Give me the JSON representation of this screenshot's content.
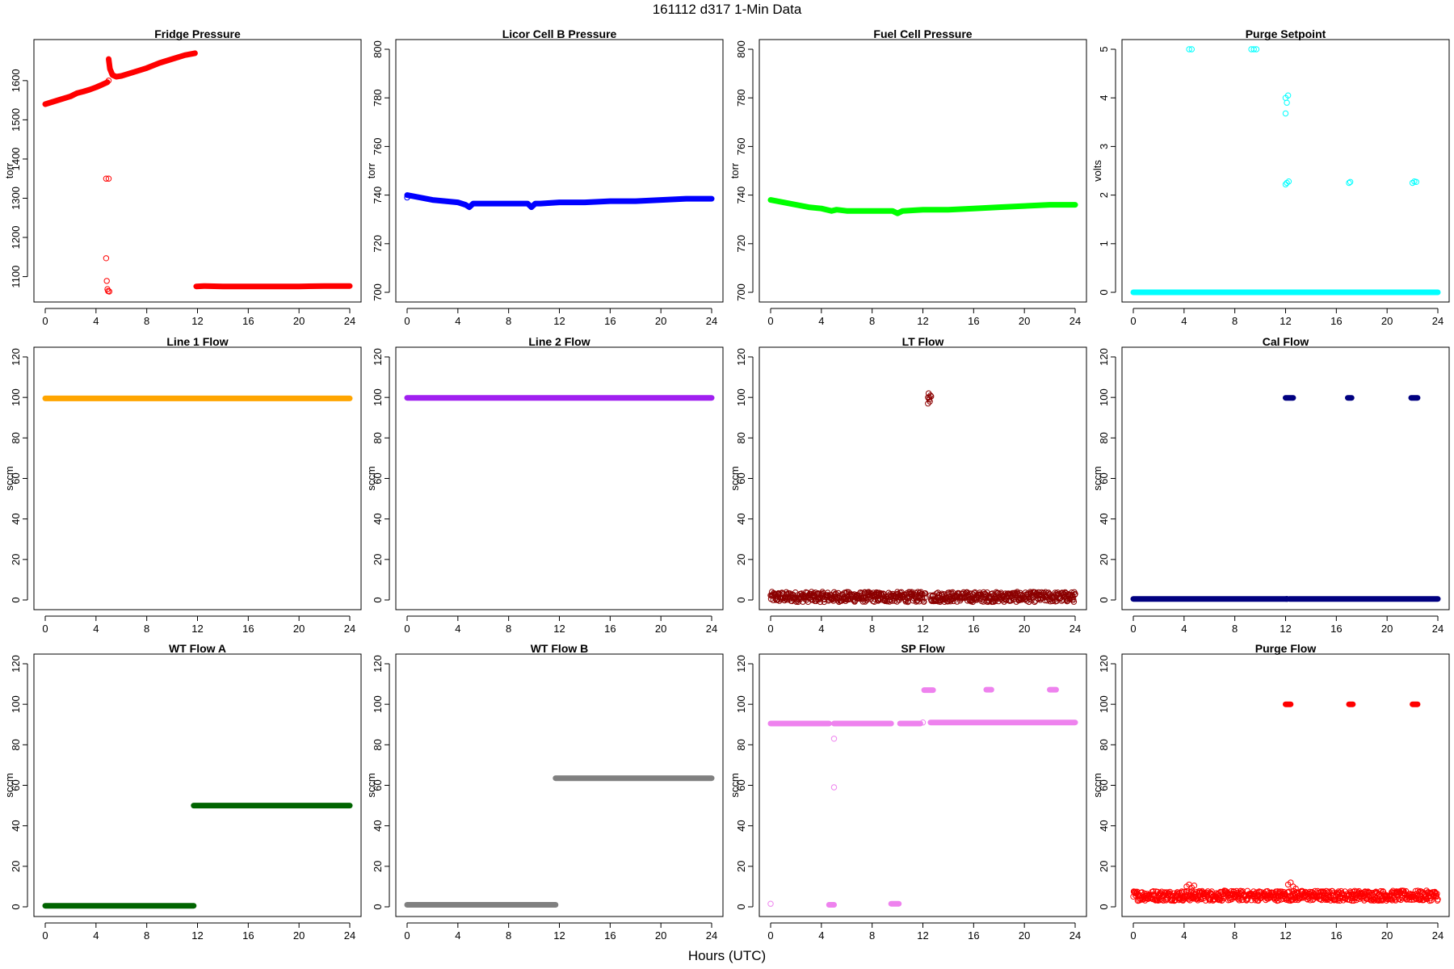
{
  "figure": {
    "title": "161112   d317   1-Min Data",
    "xlabel": "Hours (UTC)"
  },
  "chart_data": [
    {
      "type": "scatter",
      "title": "Fridge Pressure",
      "xlabel": "",
      "ylabel": "torr",
      "xlim": [
        0,
        24
      ],
      "ylim": [
        1060,
        1680
      ],
      "xticks": [
        0,
        4,
        8,
        12,
        16,
        20,
        24
      ],
      "yticks": [
        1100,
        1200,
        1300,
        1400,
        1500,
        1600
      ],
      "color": "#ff0000",
      "grid": false,
      "series": [
        {
          "segments": [
            {
              "x": [
                0,
                1,
                2,
                2.5,
                3,
                3.5,
                4,
                4.5,
                4.9
              ],
              "y": [
                1540,
                1550,
                1560,
                1568,
                1572,
                1577,
                1583,
                1590,
                1596
              ]
            },
            {
              "x": [
                5.0,
                5.1,
                5.3,
                5.6,
                6,
                7,
                8,
                9,
                10,
                11,
                11.8
              ],
              "y": [
                1655,
                1630,
                1614,
                1610,
                1612,
                1622,
                1632,
                1645,
                1655,
                1665,
                1670
              ]
            },
            {
              "x": [
                11.9,
                12.5,
                14,
                16,
                18,
                20,
                22,
                24
              ],
              "y": [
                1075,
                1076,
                1075,
                1075,
                1075,
                1075,
                1076,
                1076
              ]
            }
          ],
          "points": [
            {
              "x": 4.8,
              "y": 1350
            },
            {
              "x": 5.0,
              "y": 1350
            },
            {
              "x": 4.8,
              "y": 1147
            },
            {
              "x": 4.85,
              "y": 1089
            },
            {
              "x": 4.9,
              "y": 1068
            },
            {
              "x": 4.95,
              "y": 1063
            },
            {
              "x": 5.05,
              "y": 1062
            },
            {
              "x": 5.0,
              "y": 1600
            }
          ]
        }
      ]
    },
    {
      "type": "scatter",
      "title": "Licor Cell B Pressure",
      "xlabel": "",
      "ylabel": "torr",
      "xlim": [
        0,
        24
      ],
      "ylim": [
        700,
        800
      ],
      "xticks": [
        0,
        4,
        8,
        12,
        16,
        20,
        24
      ],
      "yticks": [
        700,
        720,
        740,
        760,
        780,
        800
      ],
      "color": "#0000ff",
      "grid": false,
      "series": [
        {
          "segments": [
            {
              "x": [
                0,
                1,
                2,
                3,
                4,
                4.6,
                4.9,
                5.2,
                5.6,
                6,
                8,
                9.5,
                9.8,
                10.1,
                10.5,
                12,
                14,
                16,
                18,
                20,
                22,
                24
              ],
              "y": [
                740,
                739,
                738,
                737.5,
                737,
                736,
                735,
                736.5,
                736.5,
                736.5,
                736.5,
                736.5,
                735,
                736.5,
                736.5,
                737,
                737,
                737.5,
                737.5,
                738,
                738.5,
                738.5
              ]
            }
          ],
          "points": [
            {
              "x": 0,
              "y": 739
            }
          ]
        }
      ]
    },
    {
      "type": "scatter",
      "title": "Fuel Cell Pressure",
      "xlabel": "",
      "ylabel": "torr",
      "xlim": [
        0,
        24
      ],
      "ylim": [
        700,
        800
      ],
      "xticks": [
        0,
        4,
        8,
        12,
        16,
        20,
        24
      ],
      "yticks": [
        700,
        720,
        740,
        760,
        780,
        800
      ],
      "color": "#00ff00",
      "grid": false,
      "series": [
        {
          "segments": [
            {
              "x": [
                0,
                1,
                2,
                3,
                4,
                4.8,
                5.2,
                6,
                8,
                9.6,
                10,
                10.4,
                12,
                14,
                16,
                18,
                20,
                22,
                24
              ],
              "y": [
                738,
                737,
                736,
                735,
                734.5,
                733.5,
                734,
                733.5,
                733.5,
                733.5,
                732.5,
                733.5,
                734,
                734,
                734.5,
                735,
                735.5,
                736,
                736
              ]
            }
          ],
          "points": []
        }
      ]
    },
    {
      "type": "scatter",
      "title": "Purge Setpoint",
      "xlabel": "",
      "ylabel": "volts",
      "xlim": [
        0,
        24
      ],
      "ylim": [
        0,
        5
      ],
      "xticks": [
        0,
        4,
        8,
        12,
        16,
        20,
        24
      ],
      "yticks": [
        0,
        1,
        2,
        3,
        4,
        5
      ],
      "color": "#00ffff",
      "grid": false,
      "series": [
        {
          "segments": [
            {
              "x": [
                0,
                24
              ],
              "y": [
                0,
                0
              ]
            }
          ],
          "points": [
            {
              "x": 4.4,
              "y": 5
            },
            {
              "x": 4.6,
              "y": 5
            },
            {
              "x": 9.3,
              "y": 5
            },
            {
              "x": 9.5,
              "y": 5
            },
            {
              "x": 9.7,
              "y": 5
            },
            {
              "x": 12.0,
              "y": 4.0
            },
            {
              "x": 12.1,
              "y": 3.9
            },
            {
              "x": 12.2,
              "y": 4.05
            },
            {
              "x": 12.0,
              "y": 3.68
            },
            {
              "x": 12.0,
              "y": 2.22
            },
            {
              "x": 12.1,
              "y": 2.25
            },
            {
              "x": 12.25,
              "y": 2.28
            },
            {
              "x": 17.0,
              "y": 2.25
            },
            {
              "x": 17.1,
              "y": 2.27
            },
            {
              "x": 22.0,
              "y": 2.25
            },
            {
              "x": 22.15,
              "y": 2.28
            },
            {
              "x": 22.3,
              "y": 2.27
            }
          ]
        }
      ]
    },
    {
      "type": "scatter",
      "title": "Line 1 Flow",
      "xlabel": "",
      "ylabel": "sccm",
      "xlim": [
        0,
        24
      ],
      "ylim": [
        0,
        120
      ],
      "xticks": [
        0,
        4,
        8,
        12,
        16,
        20,
        24
      ],
      "yticks": [
        0,
        20,
        40,
        60,
        80,
        100,
        120
      ],
      "color": "#ffa500",
      "grid": false,
      "series": [
        {
          "segments": [
            {
              "x": [
                0,
                24
              ],
              "y": [
                99.5,
                99.5
              ]
            }
          ],
          "points": []
        }
      ]
    },
    {
      "type": "scatter",
      "title": "Line 2 Flow",
      "xlabel": "",
      "ylabel": "sccm",
      "xlim": [
        0,
        24
      ],
      "ylim": [
        0,
        120
      ],
      "xticks": [
        0,
        4,
        8,
        12,
        16,
        20,
        24
      ],
      "yticks": [
        0,
        20,
        40,
        60,
        80,
        100,
        120
      ],
      "color": "#a020f0",
      "grid": false,
      "series": [
        {
          "segments": [
            {
              "x": [
                0,
                24
              ],
              "y": [
                99.8,
                99.8
              ]
            }
          ],
          "points": []
        }
      ]
    },
    {
      "type": "scatter",
      "title": "LT Flow",
      "xlabel": "",
      "ylabel": "sccm",
      "xlim": [
        0,
        24
      ],
      "ylim": [
        0,
        120
      ],
      "xticks": [
        0,
        4,
        8,
        12,
        16,
        20,
        24
      ],
      "yticks": [
        0,
        20,
        40,
        60,
        80,
        100,
        120
      ],
      "color": "#8b0000",
      "grid": false,
      "series": [
        {
          "segments": [],
          "band": {
            "x": [
              0,
              24
            ],
            "y": [
              -1,
              4
            ],
            "gap": [
              12.2,
              12.6
            ]
          },
          "points": [
            {
              "x": 12.4,
              "y": 97
            },
            {
              "x": 12.5,
              "y": 99
            },
            {
              "x": 12.6,
              "y": 101
            },
            {
              "x": 12.45,
              "y": 102
            },
            {
              "x": 12.55,
              "y": 98
            },
            {
              "x": 12.5,
              "y": 100
            },
            {
              "x": 12.65,
              "y": 100.5
            },
            {
              "x": 12.4,
              "y": 100
            }
          ]
        }
      ]
    },
    {
      "type": "scatter",
      "title": "Cal Flow",
      "xlabel": "",
      "ylabel": "sccm",
      "xlim": [
        0,
        24
      ],
      "ylim": [
        0,
        120
      ],
      "xticks": [
        0,
        4,
        8,
        12,
        16,
        20,
        24
      ],
      "yticks": [
        0,
        20,
        40,
        60,
        80,
        100,
        120
      ],
      "color": "#000080",
      "grid": false,
      "series": [
        {
          "segments": [
            {
              "x": [
                0,
                12.0
              ],
              "y": [
                0.5,
                0.5
              ]
            },
            {
              "x": [
                12.3,
                24
              ],
              "y": [
                0.5,
                0.5
              ]
            },
            {
              "x": [
                12.0,
                12.6
              ],
              "y": [
                99.8,
                99.8
              ]
            },
            {
              "x": [
                16.9,
                17.2
              ],
              "y": [
                99.8,
                99.8
              ]
            },
            {
              "x": [
                21.9,
                22.4
              ],
              "y": [
                99.8,
                99.8
              ]
            }
          ],
          "points": [
            {
              "x": 12.1,
              "y": 0.5
            }
          ]
        }
      ]
    },
    {
      "type": "scatter",
      "title": "WT Flow A",
      "xlabel": "",
      "ylabel": "sccm",
      "xlim": [
        0,
        24
      ],
      "ylim": [
        0,
        120
      ],
      "xticks": [
        0,
        4,
        8,
        12,
        16,
        20,
        24
      ],
      "yticks": [
        0,
        20,
        40,
        60,
        80,
        100,
        120
      ],
      "color": "#006400",
      "grid": false,
      "series": [
        {
          "segments": [
            {
              "x": [
                0,
                11.7
              ],
              "y": [
                0.5,
                0.5
              ]
            },
            {
              "x": [
                11.7,
                24
              ],
              "y": [
                50,
                50
              ]
            }
          ],
          "points": []
        }
      ]
    },
    {
      "type": "scatter",
      "title": "WT Flow B",
      "xlabel": "",
      "ylabel": "sccm",
      "xlim": [
        0,
        24
      ],
      "ylim": [
        0,
        120
      ],
      "xticks": [
        0,
        4,
        8,
        12,
        16,
        20,
        24
      ],
      "yticks": [
        0,
        20,
        40,
        60,
        80,
        100,
        120
      ],
      "color": "#808080",
      "grid": false,
      "series": [
        {
          "segments": [
            {
              "x": [
                0,
                11.7
              ],
              "y": [
                1,
                1
              ]
            },
            {
              "x": [
                11.7,
                24
              ],
              "y": [
                63.5,
                63.5
              ]
            }
          ],
          "points": []
        }
      ]
    },
    {
      "type": "scatter",
      "title": "SP Flow",
      "xlabel": "",
      "ylabel": "sccm",
      "xlim": [
        0,
        24
      ],
      "ylim": [
        0,
        120
      ],
      "xticks": [
        0,
        4,
        8,
        12,
        16,
        20,
        24
      ],
      "yticks": [
        0,
        20,
        40,
        60,
        80,
        100,
        120
      ],
      "color": "#ee82ee",
      "grid": false,
      "series": [
        {
          "segments": [
            {
              "x": [
                0,
                4.6
              ],
              "y": [
                90.5,
                90.5
              ]
            },
            {
              "x": [
                5.0,
                9.5
              ],
              "y": [
                90.5,
                90.5
              ]
            },
            {
              "x": [
                10.2,
                11.8
              ],
              "y": [
                90.5,
                90.5
              ]
            },
            {
              "x": [
                12.6,
                24
              ],
              "y": [
                91,
                91
              ]
            },
            {
              "x": [
                4.6,
                5.0
              ],
              "y": [
                1,
                1
              ]
            },
            {
              "x": [
                9.5,
                10.1
              ],
              "y": [
                1.5,
                1.5
              ]
            },
            {
              "x": [
                12.1,
                12.8
              ],
              "y": [
                107,
                107
              ]
            },
            {
              "x": [
                17.0,
                17.4
              ],
              "y": [
                107.2,
                107.2
              ]
            },
            {
              "x": [
                22.0,
                22.5
              ],
              "y": [
                107.2,
                107.2
              ]
            }
          ],
          "points": [
            {
              "x": 0,
              "y": 1.5
            },
            {
              "x": 5.0,
              "y": 83
            },
            {
              "x": 5.0,
              "y": 59
            },
            {
              "x": 12.0,
              "y": 91
            }
          ]
        }
      ]
    },
    {
      "type": "scatter",
      "title": "Purge Flow",
      "xlabel": "",
      "ylabel": "sccm",
      "xlim": [
        0,
        24
      ],
      "ylim": [
        0,
        120
      ],
      "xticks": [
        0,
        4,
        8,
        12,
        16,
        20,
        24
      ],
      "yticks": [
        0,
        20,
        40,
        60,
        80,
        100,
        120
      ],
      "color": "#ff0000",
      "grid": false,
      "series": [
        {
          "segments": [
            {
              "x": [
                12.0,
                12.4
              ],
              "y": [
                100,
                100
              ]
            },
            {
              "x": [
                17.0,
                17.3
              ],
              "y": [
                100,
                100
              ]
            },
            {
              "x": [
                22.0,
                22.4
              ],
              "y": [
                100,
                100
              ]
            }
          ],
          "band": {
            "x": [
              0,
              24
            ],
            "y": [
              3,
              8
            ],
            "gap": null
          },
          "points": [
            {
              "x": 4.2,
              "y": 10
            },
            {
              "x": 4.4,
              "y": 11
            },
            {
              "x": 4.6,
              "y": 9.5
            },
            {
              "x": 4.8,
              "y": 10.5
            },
            {
              "x": 12.2,
              "y": 11
            },
            {
              "x": 12.4,
              "y": 12
            },
            {
              "x": 12.6,
              "y": 10
            },
            {
              "x": 12.8,
              "y": 9
            }
          ]
        }
      ]
    }
  ]
}
